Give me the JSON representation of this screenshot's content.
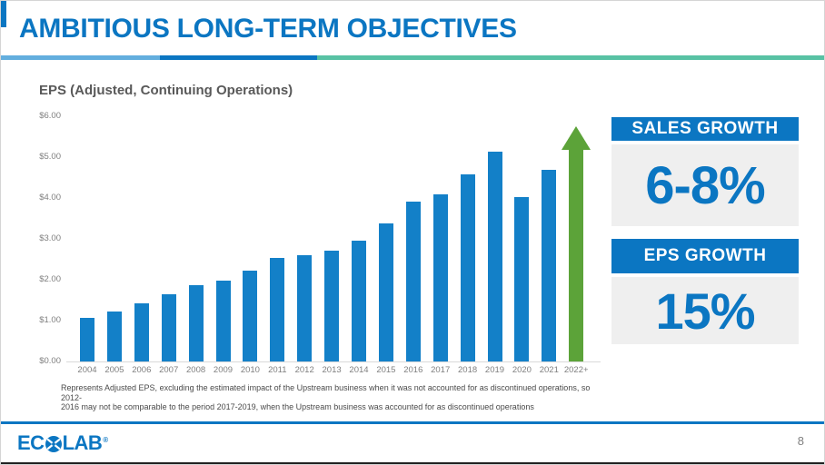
{
  "slide": {
    "title": "AMBITIOUS LONG-TERM OBJECTIVES"
  },
  "chart_data": {
    "type": "bar",
    "title": "EPS (Adjusted, Continuing Operations)",
    "categories": [
      "2004",
      "2005",
      "2006",
      "2007",
      "2008",
      "2009",
      "2010",
      "2011",
      "2012",
      "2013",
      "2014",
      "2015",
      "2016",
      "2017",
      "2018",
      "2019",
      "2020",
      "2021",
      "2022+"
    ],
    "values": [
      1.07,
      1.23,
      1.43,
      1.65,
      1.86,
      1.99,
      2.23,
      2.54,
      2.6,
      2.72,
      2.95,
      3.38,
      3.91,
      4.1,
      4.57,
      5.13,
      4.02,
      4.69,
      null
    ],
    "future_arrow": {
      "category": "2022+",
      "tip_value": 5.75,
      "meaning": "projected continued growth"
    },
    "xlabel": "",
    "ylabel": "",
    "ylim": [
      0,
      6
    ],
    "ytick_labels": [
      "$0.00",
      "$1.00",
      "$2.00",
      "$3.00",
      "$4.00",
      "$5.00",
      "$6.00"
    ],
    "grid": false,
    "legend": false,
    "bar_color": "#1380c8",
    "arrow_color": "#5ca339"
  },
  "callouts": [
    {
      "label": "SALES GROWTH",
      "value": "6-8%"
    },
    {
      "label": "EPS GROWTH",
      "value": "15%"
    }
  ],
  "footnote": {
    "line1": "Represents Adjusted EPS, excluding the estimated impact of the Upstream business when it was not accounted for as discontinued operations, so 2012-",
    "line2": "2016 may not be comparable to the period 2017-2019, when the Upstream business was accounted for as discontinued operations"
  },
  "footer": {
    "logo_text_left": "EC",
    "logo_text_right": "LAB",
    "logo_registered": "®",
    "page_number": "8"
  },
  "colors": {
    "title_blue": "#0b76c2",
    "divider_light_blue": "#63aede",
    "divider_blue": "#0b76c2",
    "divider_teal": "#58c2a4",
    "bar_blue": "#1380c8",
    "arrow_green": "#5ca339",
    "panel_gray": "#efefef",
    "heading_gray": "#595959",
    "tick_gray": "#7f7f7f"
  }
}
